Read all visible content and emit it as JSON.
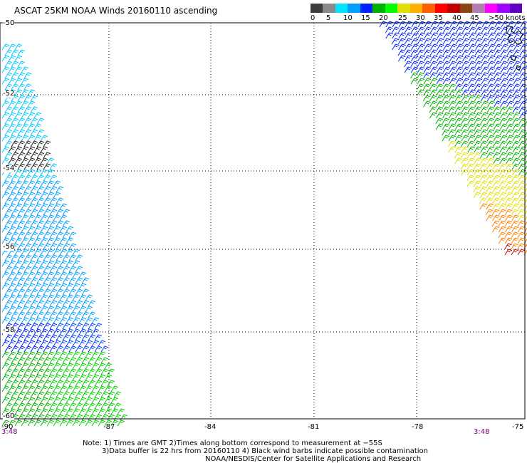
{
  "title": "ASCAT 25KM NOAA Winds 20160110 ascending",
  "legend": {
    "labels": [
      "0",
      "5",
      "10",
      "15",
      "20",
      "25",
      "30",
      "35",
      "40",
      "45"
    ],
    "units": ">50 knots",
    "colors": [
      "#3d3d3d",
      "#8a8a8a",
      "#00e5ff",
      "#00a0ff",
      "#0022ff",
      "#00b000",
      "#00ff00",
      "#e0e000",
      "#ffb000",
      "#ff6000",
      "#ff0000",
      "#c00000",
      "#8b4513",
      "#b080b0",
      "#ff00ff",
      "#a000ff",
      "#6000c0"
    ]
  },
  "map": {
    "lat_labels": [
      "-50",
      "-52",
      "-54",
      "-56",
      "-58",
      "-60"
    ],
    "lon_labels": [
      "-90",
      "-87",
      "-84",
      "-81",
      "-78",
      "-75"
    ],
    "lat_range": [
      -60,
      -50
    ],
    "lon_range": [
      -90,
      -75
    ],
    "time_left": "3:48",
    "time_right": "3:48"
  },
  "notes": {
    "line1": "Note: 1) Times are GMT 2)Times along bottom correspond to measurement at −55S",
    "line2": "3)Data buffer is 22 hrs from 20160110 4) Black wind barbs indicate possible contamination",
    "line3": "NOAA/NESDIS/Center for Satellite Applications and Research"
  }
}
